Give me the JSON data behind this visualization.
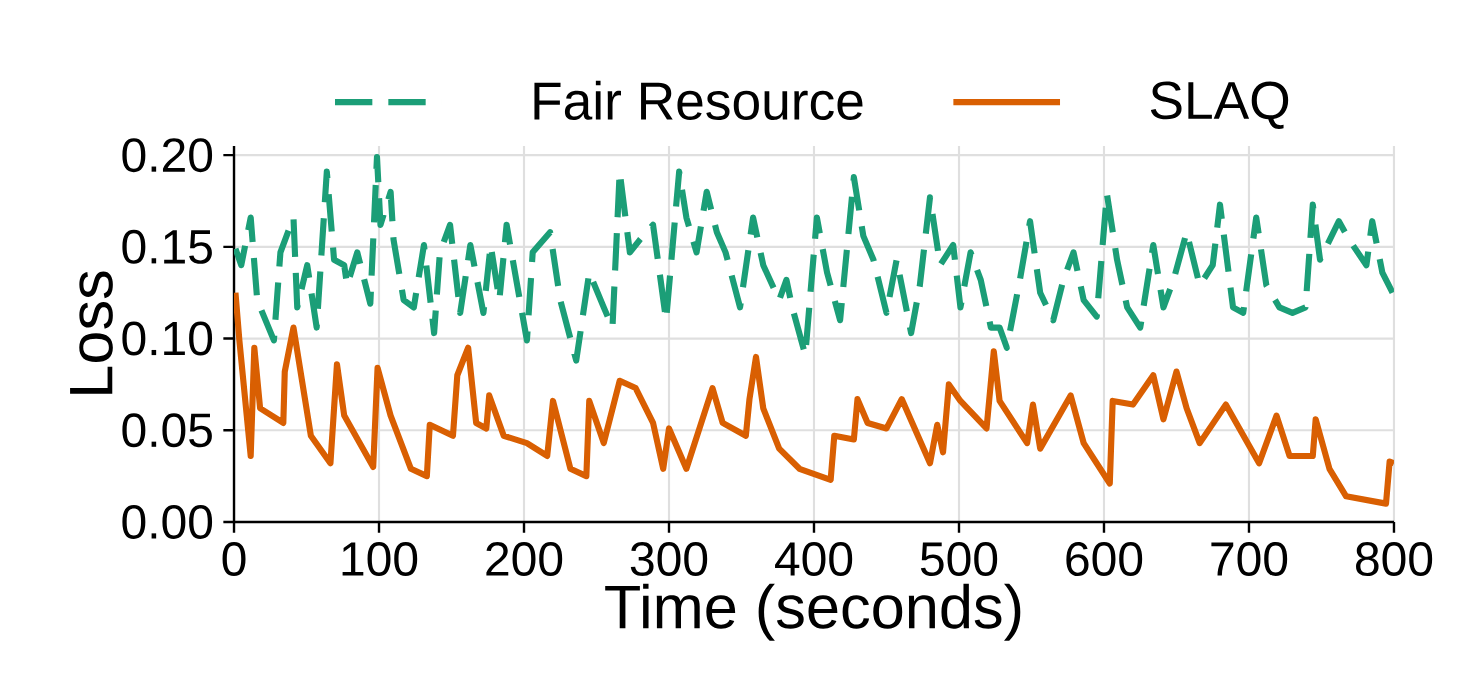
{
  "chart_data": {
    "type": "line",
    "xlabel": "Time (seconds)",
    "ylabel": "Loss",
    "xlim": [
      0,
      800
    ],
    "ylim": [
      0,
      0.205
    ],
    "xticks": [
      0,
      100,
      200,
      300,
      400,
      500,
      600,
      700,
      800
    ],
    "yticks": [
      {
        "value": 0,
        "label": "0.00"
      },
      {
        "value": 0.05,
        "label": "0.05"
      },
      {
        "value": 0.1,
        "label": "0.10"
      },
      {
        "value": 0.15,
        "label": "0.15"
      },
      {
        "value": 0.2,
        "label": "0.20"
      }
    ],
    "grid": true,
    "legend": "top",
    "series": [
      {
        "name": "Fair Resource",
        "color": "#1b9e77",
        "line_style": "dashed",
        "x": [
          1,
          5,
          11.5,
          16,
          27.5,
          32,
          41,
          43.6,
          50.5,
          57,
          64,
          69,
          76,
          78,
          85,
          94,
          98.6,
          101,
          108,
          110,
          117,
          124,
          131,
          138,
          142,
          149,
          156,
          163,
          172,
          177,
          183,
          188,
          202,
          206,
          218,
          225,
          236,
          245,
          255,
          261,
          266,
          273,
          280,
          289,
          298,
          307,
          312,
          319,
          326,
          333,
          339,
          349,
          358,
          365,
          376,
          381,
          385,
          394,
          398,
          402,
          409,
          418,
          427.5,
          434,
          441,
          450,
          457,
          467,
          473,
          480,
          487,
          496,
          501,
          508,
          515,
          522,
          528,
          533,
          542,
          549,
          556,
          565,
          572,
          579,
          586,
          595,
          602,
          609,
          616,
          625,
          634,
          641,
          648,
          657,
          666,
          675,
          680,
          689,
          696,
          705,
          712,
          721,
          730,
          739,
          744,
          749,
          762,
          769,
          781,
          785,
          792,
          799
        ],
        "values": [
          0.149,
          0.14,
          0.166,
          0.121,
          0.099,
          0.147,
          0.166,
          0.117,
          0.14,
          0.106,
          0.191,
          0.143,
          0.14,
          0.129,
          0.147,
          0.119,
          0.199,
          0.162,
          0.18,
          0.154,
          0.121,
          0.117,
          0.151,
          0.103,
          0.147,
          0.162,
          0.114,
          0.151,
          0.114,
          0.151,
          0.121,
          0.162,
          0.099,
          0.147,
          0.158,
          0.121,
          0.088,
          0.136,
          0.117,
          0.106,
          0.191,
          0.147,
          0.154,
          0.162,
          0.11,
          0.191,
          0.166,
          0.147,
          0.18,
          0.158,
          0.147,
          0.117,
          0.166,
          0.14,
          0.121,
          0.132,
          0.117,
          0.091,
          0.129,
          0.166,
          0.136,
          0.11,
          0.188,
          0.156,
          0.143,
          0.114,
          0.143,
          0.103,
          0.129,
          0.177,
          0.14,
          0.151,
          0.117,
          0.147,
          0.132,
          0.106,
          0.106,
          0.095,
          0.132,
          0.164,
          0.125,
          0.11,
          0.132,
          0.147,
          0.121,
          0.112,
          0.179,
          0.143,
          0.117,
          0.106,
          0.151,
          0.117,
          0.132,
          0.158,
          0.129,
          0.14,
          0.173,
          0.117,
          0.114,
          0.166,
          0.129,
          0.117,
          0.114,
          0.117,
          0.173,
          0.143,
          0.164,
          0.154,
          0.14,
          0.164,
          0.136,
          0.125
        ]
      },
      {
        "name": "SLAQ",
        "color": "#d95f02",
        "line_style": "solid",
        "x": [
          1,
          3.7,
          11.5,
          14,
          18,
          34,
          35,
          41,
          53,
          66.5,
          71,
          76,
          96,
          99,
          108,
          122,
          133,
          135,
          151,
          154,
          161.5,
          167,
          174,
          176,
          186,
          202,
          216,
          220,
          232,
          243,
          245,
          255,
          266,
          277,
          289,
          296,
          300,
          312,
          330,
          337,
          353,
          355.5,
          360,
          365,
          376,
          390,
          411.5,
          414,
          427.5,
          430,
          437,
          450,
          460.5,
          480,
          485,
          489,
          493,
          501,
          519,
          524,
          528,
          547,
          551,
          556,
          577,
          586,
          604,
          606,
          620,
          634,
          641,
          650,
          657,
          666,
          684,
          707,
          719,
          728,
          744,
          746,
          755.5,
          767,
          794.5,
          797,
          800
        ],
        "values": [
          0.125,
          0.099,
          0.036,
          0.095,
          0.062,
          0.054,
          0.082,
          0.106,
          0.047,
          0.032,
          0.086,
          0.058,
          0.03,
          0.084,
          0.058,
          0.029,
          0.025,
          0.053,
          0.047,
          0.08,
          0.095,
          0.054,
          0.051,
          0.069,
          0.047,
          0.043,
          0.036,
          0.066,
          0.029,
          0.025,
          0.066,
          0.043,
          0.077,
          0.073,
          0.054,
          0.029,
          0.051,
          0.029,
          0.073,
          0.054,
          0.047,
          0.067,
          0.09,
          0.062,
          0.04,
          0.029,
          0.023,
          0.047,
          0.045,
          0.067,
          0.054,
          0.051,
          0.067,
          0.032,
          0.053,
          0.038,
          0.075,
          0.066,
          0.051,
          0.093,
          0.066,
          0.043,
          0.064,
          0.04,
          0.069,
          0.043,
          0.021,
          0.066,
          0.064,
          0.08,
          0.056,
          0.082,
          0.062,
          0.043,
          0.064,
          0.032,
          0.058,
          0.036,
          0.036,
          0.056,
          0.029,
          0.014,
          0.01,
          0.033,
          0.032
        ]
      }
    ]
  }
}
